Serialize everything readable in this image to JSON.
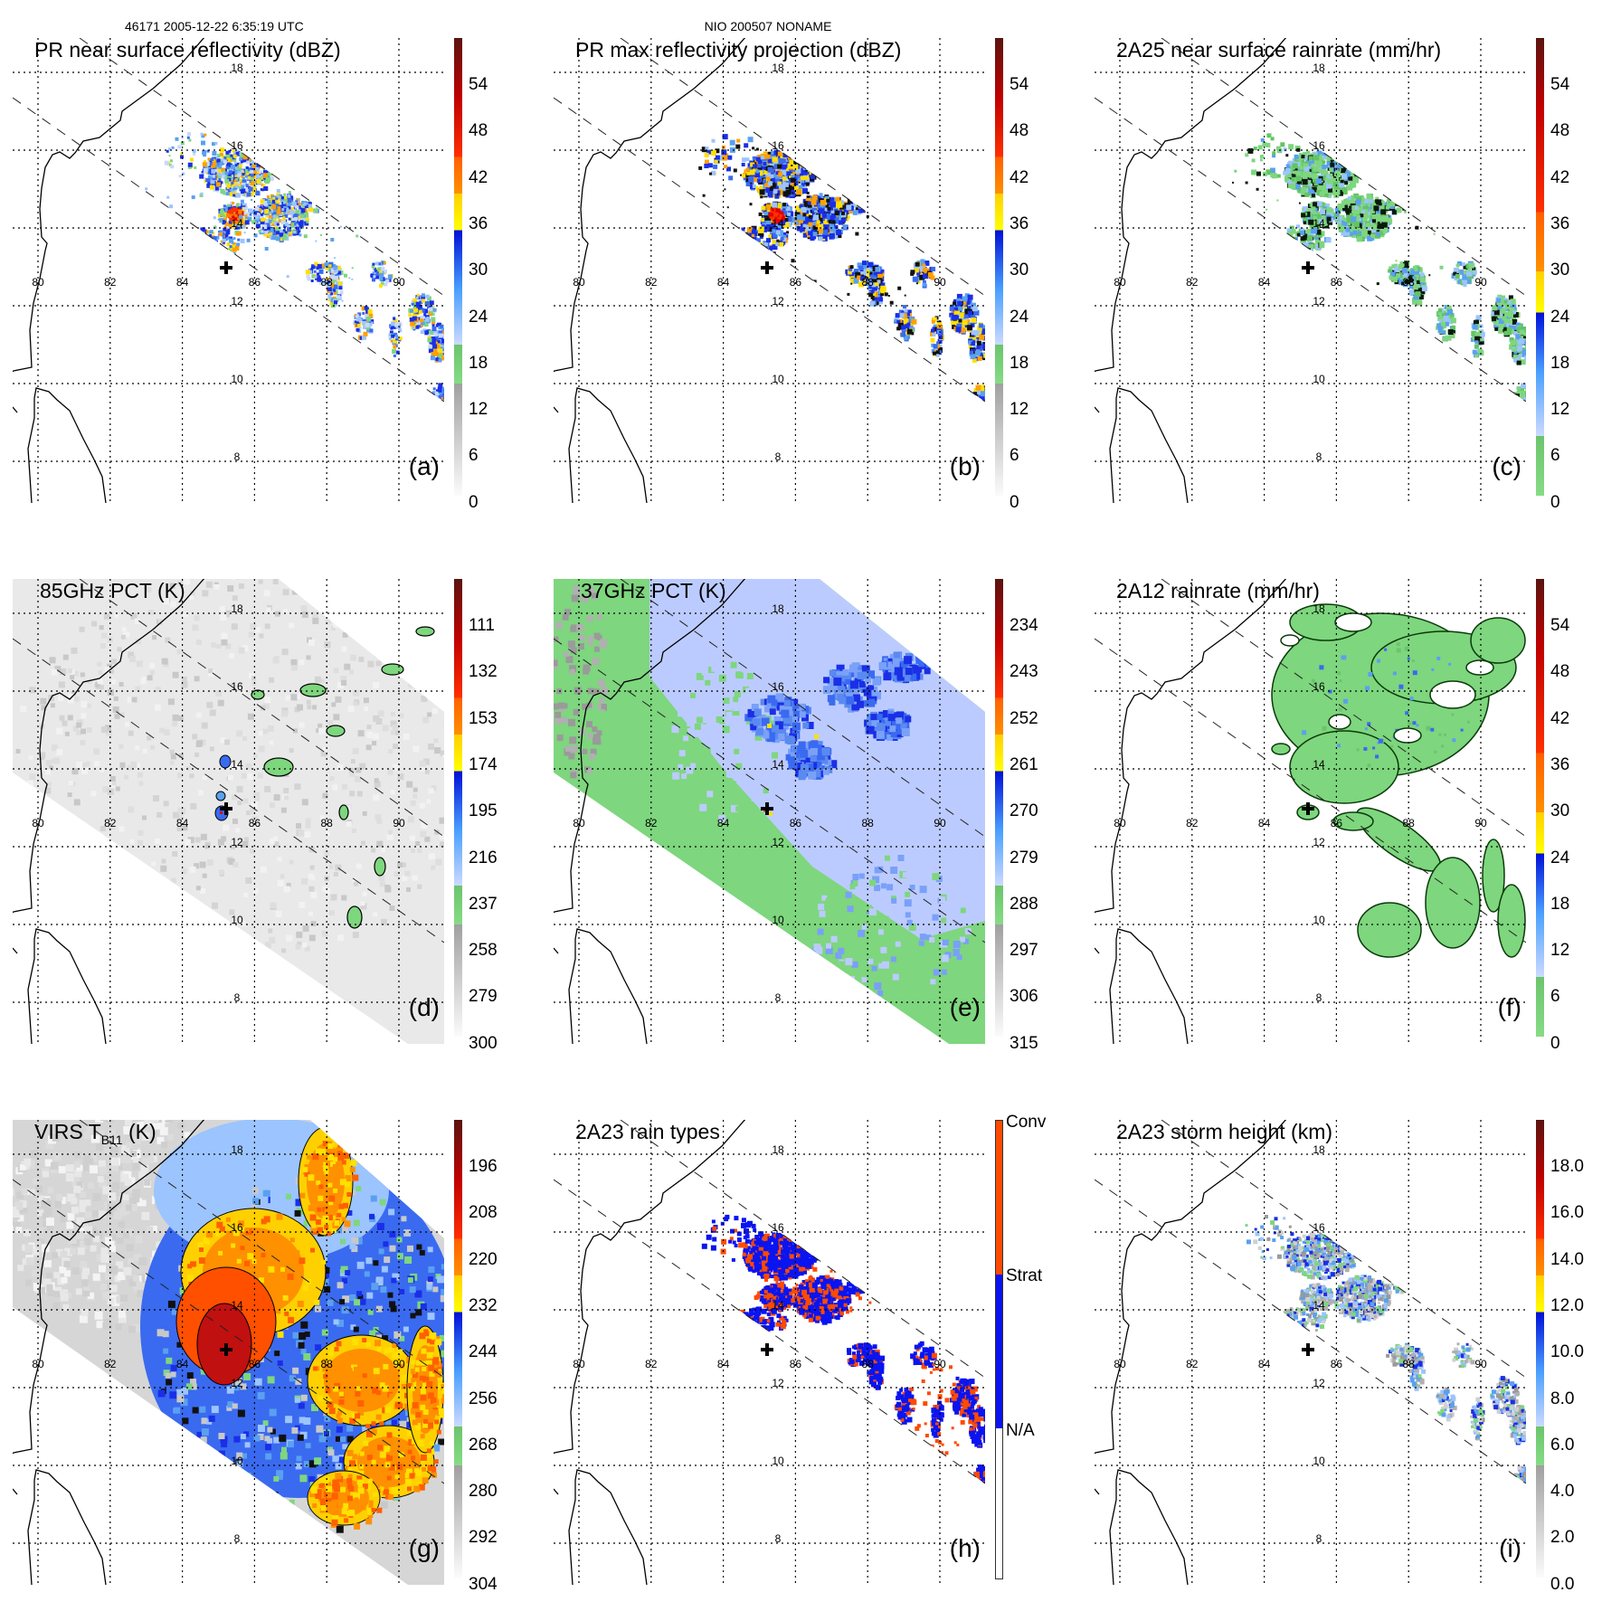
{
  "header": {
    "left": "46171 2005-12-22 6:35:19 UTC",
    "center": "NIO 200507 NONAME"
  },
  "map": {
    "lon_labels": [
      "80",
      "82",
      "84",
      "86",
      "88",
      "90"
    ],
    "lat_labels": [
      "18",
      "16",
      "14",
      "12",
      "10",
      "8"
    ]
  },
  "panels": [
    {
      "letter": "(a)",
      "title": "PR near surface reflectivity (dBZ)",
      "colorbar": [
        "54",
        "48",
        "42",
        "36",
        "30",
        "24",
        "18",
        "12",
        "6",
        "0"
      ]
    },
    {
      "letter": "(b)",
      "title": "PR max reflectivity projection (dBZ)",
      "colorbar": [
        "54",
        "48",
        "42",
        "36",
        "30",
        "24",
        "18",
        "12",
        "6",
        "0"
      ]
    },
    {
      "letter": "(c)",
      "title": "2A25 near surface rainrate (mm/hr)",
      "colorbar": [
        "54",
        "48",
        "42",
        "36",
        "30",
        "24",
        "18",
        "12",
        "6",
        "0"
      ]
    },
    {
      "letter": "(d)",
      "title": "85GHz PCT (K)",
      "colorbar": [
        "111",
        "132",
        "153",
        "174",
        "195",
        "216",
        "237",
        "258",
        "279",
        "300"
      ]
    },
    {
      "letter": "(e)",
      "title": "37GHz PCT (K)",
      "colorbar": [
        "234",
        "243",
        "252",
        "261",
        "270",
        "279",
        "288",
        "297",
        "306",
        "315"
      ]
    },
    {
      "letter": "(f)",
      "title": "2A12 rainrate (mm/hr)",
      "colorbar": [
        "54",
        "48",
        "42",
        "36",
        "30",
        "24",
        "18",
        "12",
        "6",
        "0"
      ]
    },
    {
      "letter": "(g)",
      "title": "VIRS T",
      "title_sub": "B11",
      "title_end": " (K)",
      "colorbar": [
        "196",
        "208",
        "220",
        "232",
        "244",
        "256",
        "268",
        "280",
        "292",
        "304"
      ]
    },
    {
      "letter": "(h)",
      "title": "2A23 rain types",
      "colorbar": [
        "Conv",
        "Strat",
        "N/A"
      ]
    },
    {
      "letter": "(i)",
      "title": "2A23 storm height (km)",
      "colorbar": [
        "18.0",
        "16.0",
        "14.0",
        "12.0",
        "10.0",
        "8.0",
        "6.0",
        "4.0",
        "2.0",
        "0.0"
      ]
    }
  ],
  "colors": {
    "convective": "#ff4a00",
    "stratiform": "#0a14f0",
    "light_rain": "#7ed67e"
  }
}
